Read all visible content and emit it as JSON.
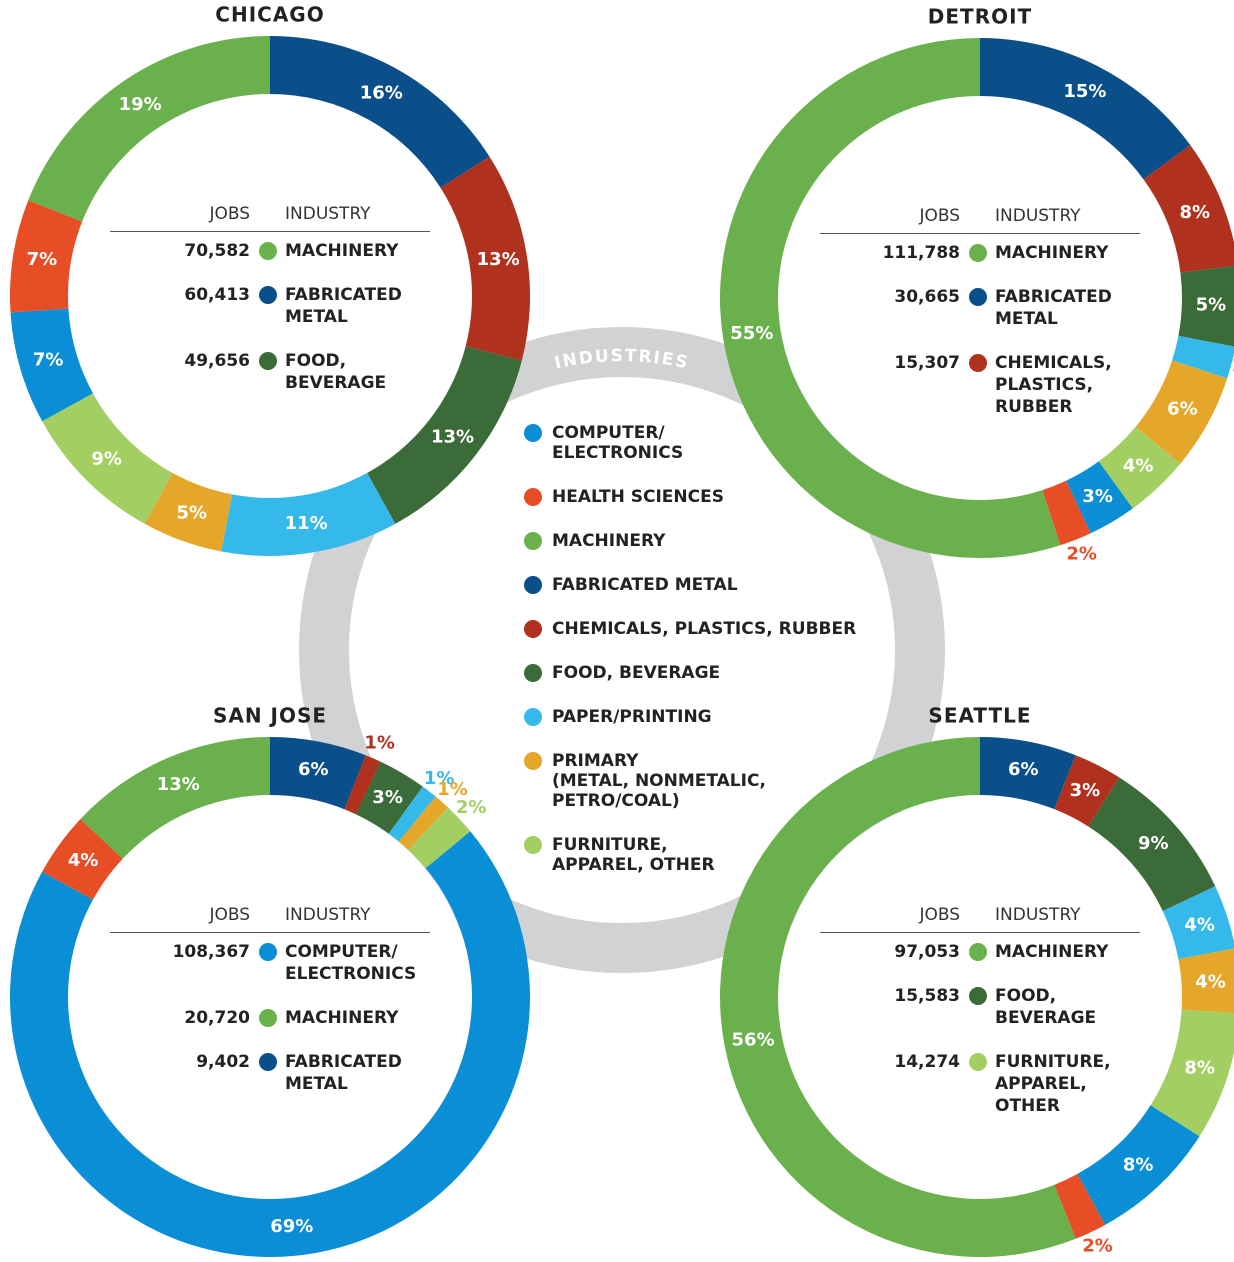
{
  "legend": {
    "title": "INDUSTRIES"
  },
  "chart_data": [
    {
      "type": "pie",
      "donut": true,
      "title": "CHICAGO",
      "categories": [
        "FABRICATED METAL",
        "CHEMICALS, PLASTICS, RUBBER",
        "FOOD, BEVERAGE",
        "PAPER/PRINTING",
        "PRIMARY\n(METAL, NONMETALIC,\nPETRO/COAL)",
        "FURNITURE,\nAPPAREL, OTHER",
        "COMPUTER/\nELECTRONICS",
        "HEALTH SCIENCES",
        "MACHINERY"
      ],
      "colors": [
        "#0b4f8a",
        "#b0321e",
        "#3a6b38",
        "#35b9ea",
        "#e5a72a",
        "#a3cf62",
        "#0a8fd6",
        "#e84e25",
        "#6ab04c"
      ],
      "values": [
        16,
        13,
        13,
        11,
        5,
        9,
        7,
        7,
        19
      ],
      "value_labels": [
        "16%",
        "13%",
        "13%",
        "11%",
        "5%",
        "9%",
        "7%",
        "7%",
        "19%"
      ],
      "table": {
        "headers": [
          "JOBS",
          "INDUSTRY"
        ],
        "rows": [
          {
            "jobs": "70,582",
            "industry": "MACHINERY",
            "color": "#6ab04c"
          },
          {
            "jobs": "60,413",
            "industry": "FABRICATED\nMETAL",
            "color": "#0b4f8a"
          },
          {
            "jobs": "49,656",
            "industry": "FOOD,\nBEVERAGE",
            "color": "#3a6b38"
          }
        ]
      }
    },
    {
      "type": "pie",
      "donut": true,
      "title": "DETROIT",
      "categories": [
        "FABRICATED METAL",
        "CHEMICALS, PLASTICS, RUBBER",
        "FOOD, BEVERAGE",
        "PAPER/PRINTING",
        "PRIMARY\n(METAL, NONMETALIC,\nPETRO/COAL)",
        "FURNITURE,\nAPPAREL, OTHER",
        "COMPUTER/\nELECTRONICS",
        "HEALTH SCIENCES",
        "MACHINERY"
      ],
      "colors": [
        "#0b4f8a",
        "#b0321e",
        "#3a6b38",
        "#35b9ea",
        "#e5a72a",
        "#a3cf62",
        "#0a8fd6",
        "#e84e25",
        "#6ab04c"
      ],
      "values": [
        15,
        8,
        5,
        2,
        6,
        4,
        3,
        2,
        55
      ],
      "value_labels": [
        "15%",
        "8%",
        "5%",
        "2%",
        "6%",
        "4%",
        "3%",
        "2%",
        "55%"
      ],
      "table": {
        "headers": [
          "JOBS",
          "INDUSTRY"
        ],
        "rows": [
          {
            "jobs": "111,788",
            "industry": "MACHINERY",
            "color": "#6ab04c"
          },
          {
            "jobs": "30,665",
            "industry": "FABRICATED\nMETAL",
            "color": "#0b4f8a"
          },
          {
            "jobs": "15,307",
            "industry": "CHEMICALS,\nPLASTICS,\nRUBBER",
            "color": "#b0321e"
          }
        ]
      }
    },
    {
      "type": "pie",
      "donut": true,
      "title": "SAN JOSE",
      "categories": [
        "FABRICATED METAL",
        "CHEMICALS, PLASTICS, RUBBER",
        "FOOD, BEVERAGE",
        "PAPER/PRINTING",
        "PRIMARY\n(METAL, NONMETALIC,\nPETRO/COAL)",
        "FURNITURE,\nAPPAREL, OTHER",
        "COMPUTER/\nELECTRONICS",
        "HEALTH SCIENCES",
        "MACHINERY"
      ],
      "colors": [
        "#0b4f8a",
        "#b0321e",
        "#3a6b38",
        "#35b9ea",
        "#e5a72a",
        "#a3cf62",
        "#0a8fd6",
        "#e84e25",
        "#6ab04c"
      ],
      "values": [
        6,
        1,
        3,
        1,
        1,
        2,
        69,
        4,
        13
      ],
      "value_labels": [
        "6%",
        "1%",
        "3%",
        "1%",
        "1%",
        "2%",
        "69%",
        "4%",
        "13%"
      ],
      "table": {
        "headers": [
          "JOBS",
          "INDUSTRY"
        ],
        "rows": [
          {
            "jobs": "108,367",
            "industry": "COMPUTER/\nELECTRONICS",
            "color": "#0a8fd6"
          },
          {
            "jobs": "20,720",
            "industry": "MACHINERY",
            "color": "#6ab04c"
          },
          {
            "jobs": "9,402",
            "industry": "FABRICATED\nMETAL",
            "color": "#0b4f8a"
          }
        ]
      }
    },
    {
      "type": "pie",
      "donut": true,
      "title": "SEATTLE",
      "categories": [
        "FABRICATED METAL",
        "CHEMICALS, PLASTICS, RUBBER",
        "FOOD, BEVERAGE",
        "PAPER/PRINTING",
        "PRIMARY\n(METAL, NONMETALIC,\nPETRO/COAL)",
        "FURNITURE,\nAPPAREL, OTHER",
        "COMPUTER/\nELECTRONICS",
        "HEALTH SCIENCES",
        "MACHINERY"
      ],
      "colors": [
        "#0b4f8a",
        "#b0321e",
        "#3a6b38",
        "#35b9ea",
        "#e5a72a",
        "#a3cf62",
        "#0a8fd6",
        "#e84e25",
        "#6ab04c"
      ],
      "values": [
        6,
        3,
        9,
        4,
        4,
        8,
        8,
        2,
        56
      ],
      "value_labels": [
        "6%",
        "3%",
        "9%",
        "4%",
        "4%",
        "8%",
        "8%",
        "2%",
        "56%"
      ],
      "table": {
        "headers": [
          "JOBS",
          "INDUSTRY"
        ],
        "rows": [
          {
            "jobs": "97,053",
            "industry": "MACHINERY",
            "color": "#6ab04c"
          },
          {
            "jobs": "15,583",
            "industry": "FOOD, BEVERAGE",
            "color": "#3a6b38"
          },
          {
            "jobs": "14,274",
            "industry": "FURNITURE,\nAPPAREL, OTHER",
            "color": "#a3cf62"
          }
        ]
      }
    }
  ]
}
